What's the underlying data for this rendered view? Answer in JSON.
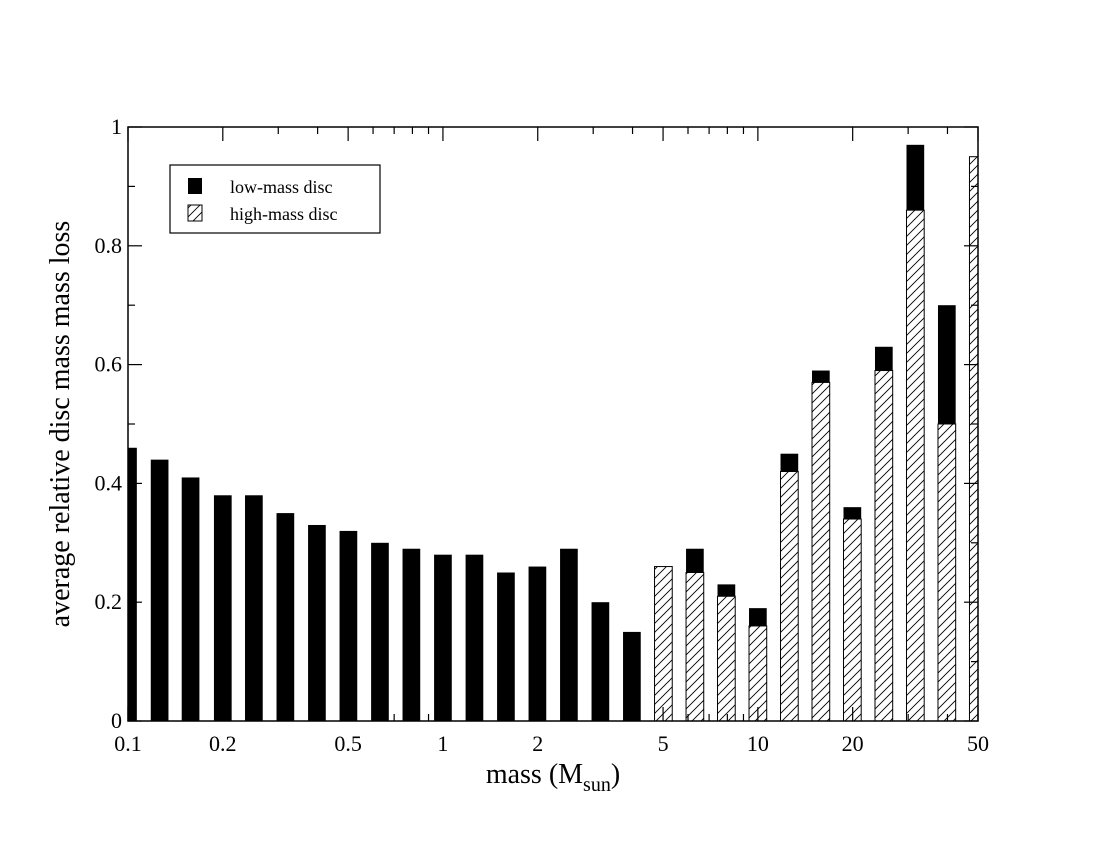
{
  "chart_data": {
    "type": "bar",
    "xscale": "log",
    "xlim": [
      0.1,
      50
    ],
    "ylim": [
      0,
      1
    ],
    "xticks": [
      0.1,
      0.2,
      0.5,
      1,
      2,
      5,
      10,
      20,
      50
    ],
    "xtick_labels": [
      "0.1",
      "0.2",
      "0.5",
      "1",
      "2",
      "5",
      "10",
      "20",
      "50"
    ],
    "yticks": [
      0,
      0.2,
      0.4,
      0.6,
      0.8,
      1
    ],
    "ytick_labels": [
      "0",
      "0.2",
      "0.4",
      "0.6",
      "0.8",
      "1"
    ],
    "xlabel": "mass (M",
    "xlabel_sub": "sun",
    "xlabel_end": ")",
    "ylabel": "average relative disc mass mass loss",
    "legend_position": "top-left",
    "grid": false,
    "x": [
      0.1,
      0.126,
      0.158,
      0.2,
      0.251,
      0.316,
      0.398,
      0.501,
      0.631,
      0.794,
      1.0,
      1.259,
      1.585,
      1.995,
      2.512,
      3.162,
      3.981,
      5.012,
      6.31,
      7.943,
      10.0,
      12.589,
      15.849,
      19.953,
      25.119,
      31.623,
      39.811,
      50.119
    ],
    "series": [
      {
        "name": "low-mass disc",
        "color": "#000000",
        "fill": "solid",
        "values": [
          0.46,
          0.44,
          0.41,
          0.38,
          0.38,
          0.35,
          0.33,
          0.32,
          0.3,
          0.29,
          0.28,
          0.28,
          0.25,
          0.26,
          0.29,
          0.2,
          0.15,
          null,
          0.29,
          0.23,
          0.19,
          0.45,
          0.59,
          0.36,
          0.63,
          0.97,
          0.7,
          null
        ]
      },
      {
        "name": "high-mass disc",
        "color": "#000000",
        "fill": "hatched",
        "values": [
          null,
          null,
          null,
          null,
          null,
          null,
          null,
          null,
          null,
          null,
          null,
          null,
          null,
          null,
          null,
          null,
          null,
          0.26,
          0.25,
          0.21,
          0.16,
          0.42,
          0.57,
          0.34,
          0.59,
          0.86,
          0.5,
          0.95
        ]
      }
    ]
  }
}
